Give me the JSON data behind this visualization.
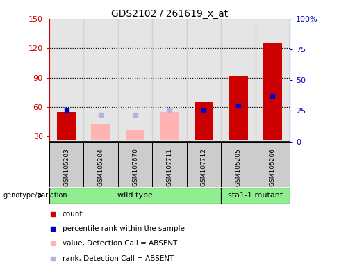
{
  "title": "GDS2102 / 261619_x_at",
  "samples": [
    "GSM105203",
    "GSM105204",
    "GSM107670",
    "GSM107711",
    "GSM107712",
    "GSM105205",
    "GSM105206"
  ],
  "count_values": [
    55,
    null,
    null,
    null,
    65,
    92,
    125
  ],
  "rank_values": [
    25,
    null,
    null,
    null,
    26,
    29,
    37
  ],
  "absent_value_values": [
    null,
    42,
    37,
    55,
    null,
    null,
    null
  ],
  "absent_rank_values": [
    null,
    22,
    22,
    25,
    null,
    null,
    null
  ],
  "ylim_left": [
    25,
    150
  ],
  "ylim_right": [
    0,
    100
  ],
  "yticks_left": [
    30,
    60,
    90,
    120,
    150
  ],
  "yticks_right": [
    0,
    25,
    50,
    75,
    100
  ],
  "ytick_labels_left": [
    "30",
    "60",
    "90",
    "120",
    "150"
  ],
  "ytick_labels_right": [
    "0",
    "25",
    "50",
    "75",
    "100%"
  ],
  "bar_bottom": 27,
  "grid_lines": [
    60,
    90,
    120
  ],
  "colors": {
    "count": "#cc0000",
    "rank": "#0000cc",
    "absent_value": "#ffb3b3",
    "absent_rank": "#b3b3dd",
    "left_axis": "#cc0000",
    "right_axis": "#0000cc"
  },
  "wt_count": 5,
  "mut_count": 2
}
